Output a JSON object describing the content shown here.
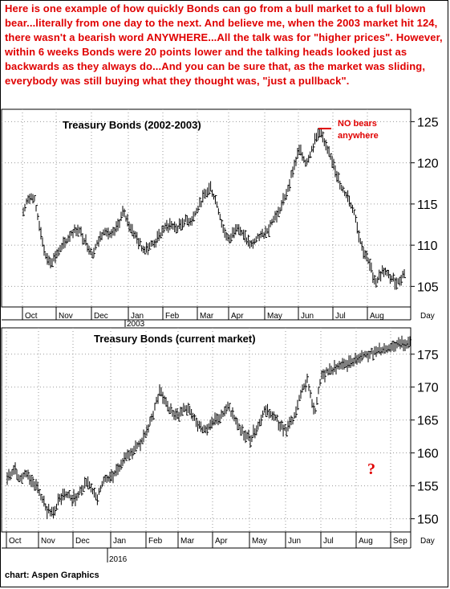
{
  "intro_text": "Here is  one example of how quickly Bonds can go from a bull market to a full blown bear...literally from one day to the next. And believe me, when the 2003 market hit 124, there wasn't a bearish word ANYWHERE...All the talk was for \"higher prices\". However, within 6 weeks Bonds were 20 points lower and the talking heads looked just as backwards as they always do...And you can be sure that, as the market was sliding, everybody was still buying  what they thought was, \"just a pullback\".",
  "credit": "chart: Aspen Graphics",
  "colors": {
    "annotation_red": "#e00000",
    "bars": "#000000",
    "grid": "#9a9a9a"
  },
  "chart_data": [
    {
      "type": "ohlc",
      "title": "Treasury Bonds (2002-2003)",
      "x_unit_label": "Day",
      "year_label": "2003",
      "x_ticks": [
        "Oct",
        "Nov",
        "Dec",
        "Jan",
        "Feb",
        "Mar",
        "Apr",
        "May",
        "Jun",
        "Jul",
        "Aug"
      ],
      "y_ticks": [
        105,
        110,
        115,
        120,
        125
      ],
      "ylim": [
        102.5,
        126.5
      ],
      "grid": true,
      "annotation": {
        "text_line1": "NO bears",
        "text_line2": "anywhere",
        "near": "peak"
      },
      "series": [
        {
          "months": [
            {
              "month": "Oct",
              "start": 114.0,
              "points": [
                116.0,
                115.5,
                112.0,
                108.5,
                108.0,
                109.0
              ]
            },
            {
              "month": "Nov",
              "start": 109.0,
              "points": [
                110.0,
                111.5,
                112.0,
                110.5,
                109.0
              ]
            },
            {
              "month": "Dec",
              "start": 109.0,
              "points": [
                110.5,
                112.0,
                111.0,
                112.0,
                114.0,
                112.5
              ]
            },
            {
              "month": "Jan",
              "start": 112.5,
              "points": [
                111.0,
                109.5,
                110.0,
                110.5,
                112.0
              ]
            },
            {
              "month": "Feb",
              "start": 112.0,
              "points": [
                112.5,
                112.0,
                113.0,
                113.0,
                114.5
              ]
            },
            {
              "month": "Mar",
              "start": 114.5,
              "points": [
                116.0,
                117.0,
                115.0,
                112.0,
                110.5
              ]
            },
            {
              "month": "Apr",
              "start": 110.5,
              "points": [
                112.5,
                111.0,
                110.0,
                111.0,
                111.5
              ]
            },
            {
              "month": "May",
              "start": 111.5,
              "points": [
                113.0,
                114.0,
                116.0,
                119.0,
                121.5
              ]
            },
            {
              "month": "Jun",
              "start": 121.5,
              "points": [
                120.0,
                122.0,
                124.0,
                121.5,
                120.0
              ]
            },
            {
              "month": "Jul",
              "start": 120.0,
              "points": [
                117.0,
                116.0,
                114.0,
                110.0,
                108.0
              ]
            },
            {
              "month": "Aug",
              "start": 108.0,
              "points": [
                105.5,
                107.0,
                106.0,
                105.5,
                107.0
              ]
            }
          ]
        }
      ]
    },
    {
      "type": "ohlc",
      "title": "Treasury Bonds (current market)",
      "x_unit_label": "Day",
      "year_label": "2016",
      "x_ticks": [
        "Oct",
        "Nov",
        "Dec",
        "Jan",
        "Feb",
        "Mar",
        "Apr",
        "May",
        "Jun",
        "Jul",
        "Aug",
        "Sep"
      ],
      "y_ticks": [
        150,
        155,
        160,
        165,
        170,
        175
      ],
      "ylim": [
        148,
        179
      ],
      "grid": true,
      "annotation": {
        "text": "?"
      },
      "series": [
        {
          "months": [
            {
              "month": "Oct",
              "start": 156.0,
              "points": [
                157.5,
                156.0,
                157.0,
                155.5,
                154.0
              ]
            },
            {
              "month": "Nov",
              "start": 154.0,
              "points": [
                151.5,
                151.0,
                153.0,
                154.0,
                153.0
              ]
            },
            {
              "month": "Dec",
              "start": 153.0,
              "points": [
                154.5,
                155.5,
                153.0,
                156.0,
                156.5
              ]
            },
            {
              "month": "Jan",
              "start": 156.5,
              "points": [
                158.0,
                160.0,
                161.0,
                163.0
              ]
            },
            {
              "month": "Feb",
              "start": 163.0,
              "points": [
                166.0,
                169.5,
                167.5,
                166.0,
                165.5
              ]
            },
            {
              "month": "Mar",
              "start": 165.5,
              "points": [
                167.0,
                165.5,
                164.0,
                163.5,
                165.0
              ]
            },
            {
              "month": "Apr",
              "start": 165.0,
              "points": [
                165.5,
                167.0,
                165.0,
                163.0,
                162.0
              ]
            },
            {
              "month": "May",
              "start": 162.0,
              "points": [
                164.0,
                166.5,
                166.0,
                164.5,
                163.5
              ]
            },
            {
              "month": "Jun",
              "start": 163.5,
              "points": [
                165.0,
                169.0,
                171.0,
                166.0,
                172.0
              ]
            },
            {
              "month": "Jul",
              "start": 172.0,
              "points": [
                175.0,
                177.0
              ]
            }
          ]
        }
      ]
    }
  ]
}
